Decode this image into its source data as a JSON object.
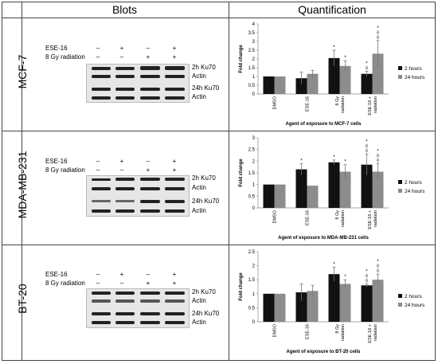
{
  "headers": {
    "blots": "Blots",
    "quantification": "Quantification"
  },
  "panels": [
    {
      "cell_line": "MCF-7",
      "treatments": [
        {
          "label": "ESE-16",
          "signs": [
            "–",
            "+",
            "–",
            "+"
          ]
        },
        {
          "label": "8 Gy radiation",
          "signs": [
            "–",
            "–",
            "+",
            "+"
          ]
        }
      ],
      "bands": [
        "2h Ku70",
        "Actin",
        "24h Ku70",
        "Actin"
      ]
    },
    {
      "cell_line": "MDA-MB-231",
      "treatments": [
        {
          "label": "ESE-16",
          "signs": [
            "–",
            "+",
            "–",
            "+"
          ]
        },
        {
          "label": "8 Gy radiation",
          "signs": [
            "–",
            "–",
            "+",
            "+"
          ]
        }
      ],
      "bands": [
        "2h Ku70",
        "Actin",
        "24h Ku70",
        "Actin"
      ]
    },
    {
      "cell_line": "BT-20",
      "treatments": [
        {
          "label": "ESE-16",
          "signs": [
            "–",
            "+",
            "–",
            "+"
          ]
        },
        {
          "label": "8 Gy radiation",
          "signs": [
            "–",
            "–",
            "+",
            "+"
          ]
        }
      ],
      "bands": [
        "2h Ku70",
        "Actin",
        "24h Ku70",
        "Actin"
      ]
    }
  ],
  "colors": {
    "series_2h": "#111111",
    "series_24h": "#8c8c8c",
    "error_bar": "#777777"
  },
  "chart_data": [
    {
      "type": "bar",
      "categories": [
        "DMSO",
        "ESE-16",
        "8 Gy radiation",
        "ESE-16 + radiation"
      ],
      "series": [
        {
          "name": "2 hours",
          "values": [
            1,
            0.9,
            2.05,
            1.15
          ],
          "errors": [
            0,
            0.35,
            0.45,
            0.15
          ]
        },
        {
          "name": "24 hours",
          "values": [
            1,
            1.15,
            1.6,
            2.3
          ],
          "errors": [
            0,
            0.2,
            0.3,
            0.75
          ]
        }
      ],
      "annotations": [
        {
          "category": 2,
          "series": 0,
          "marks": "*"
        },
        {
          "category": 2,
          "series": 1,
          "marks": "*"
        },
        {
          "category": 3,
          "series": 0,
          "marks": "*◊"
        },
        {
          "category": 3,
          "series": 1,
          "marks": "*◊◊"
        }
      ],
      "ylabel": "Fold change",
      "xlabel": "Agent of exposure to MCF-7 cells",
      "ylim": [
        0,
        4
      ],
      "yticks": [
        "0",
        "0.5",
        "1",
        "1.5",
        "2",
        "2.5",
        "3",
        "3.5",
        "4"
      ],
      "legend_position": "right"
    },
    {
      "type": "bar",
      "categories": [
        "DMSO",
        "ESE-16",
        "8 Gy radiation",
        "ESE-16 + radiation"
      ],
      "series": [
        {
          "name": "2 hours",
          "values": [
            1,
            1.65,
            1.95,
            1.85
          ],
          "errors": [
            0,
            0.25,
            0.1,
            0.45
          ]
        },
        {
          "name": "24 hours",
          "values": [
            1,
            0.95,
            1.55,
            1.55
          ],
          "errors": [
            0,
            0,
            0.3,
            0.35
          ]
        }
      ],
      "annotations": [
        {
          "category": 1,
          "series": 0,
          "marks": "*"
        },
        {
          "category": 2,
          "series": 0,
          "marks": "*"
        },
        {
          "category": 2,
          "series": 1,
          "marks": "*"
        },
        {
          "category": 3,
          "series": 0,
          "marks": "*◊◊"
        },
        {
          "category": 3,
          "series": 1,
          "marks": "*◊◊"
        }
      ],
      "ylabel": "Fold change",
      "xlabel": "Agent of exposure to MDA-MB-231 cells",
      "ylim": [
        0,
        3
      ],
      "yticks": [
        "0",
        "0.5",
        "1",
        "1.5",
        "2",
        "2.5",
        "3"
      ],
      "legend_position": "right"
    },
    {
      "type": "bar",
      "categories": [
        "DMSO",
        "ESE-16",
        "8 Gy radiation",
        "ESE-16 + radiation"
      ],
      "series": [
        {
          "name": "2 hours",
          "values": [
            1,
            1.05,
            1.7,
            1.3
          ],
          "errors": [
            0,
            0.3,
            0.25,
            0.05
          ]
        },
        {
          "name": "24 hours",
          "values": [
            1,
            1.1,
            1.35,
            1.5
          ],
          "errors": [
            0,
            0.2,
            0.15,
            0.2
          ]
        }
      ],
      "annotations": [
        {
          "category": 2,
          "series": 0,
          "marks": "*"
        },
        {
          "category": 2,
          "series": 1,
          "marks": "*"
        },
        {
          "category": 3,
          "series": 0,
          "marks": "*◊◊"
        },
        {
          "category": 3,
          "series": 1,
          "marks": "*◊◊"
        }
      ],
      "ylabel": "Fold change",
      "xlabel": "Agent of exposure to BT-20 cells",
      "ylim": [
        0,
        2.5
      ],
      "yticks": [
        "0",
        "0.5",
        "1",
        "1.5",
        "2",
        "2.5"
      ],
      "legend_position": "right"
    }
  ]
}
